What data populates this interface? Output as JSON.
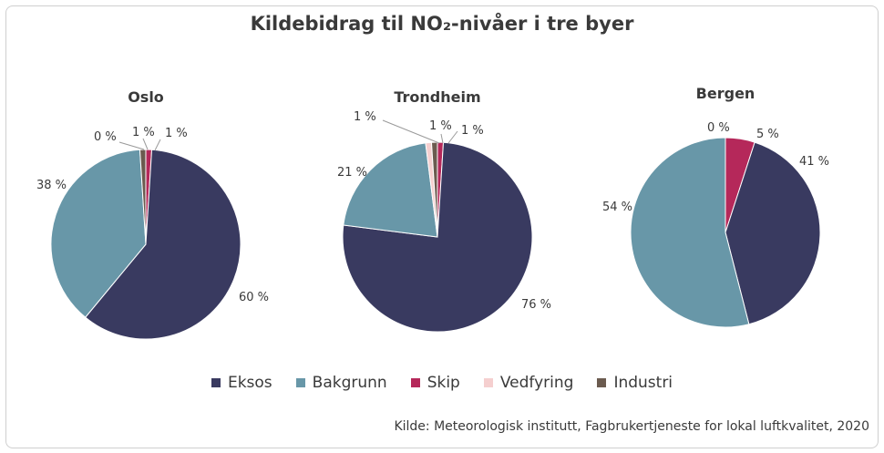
{
  "chart_data": {
    "type": "pie",
    "title": "Kildebidrag til NO₂-nivåer i tre byer",
    "source": "Kilde: Meteorologisk institutt, Fagbrukertjeneste for lokal luftkvalitet, 2020",
    "categories": [
      "Eksos",
      "Bakgrunn",
      "Skip",
      "Vedfyring",
      "Industri"
    ],
    "colors": {
      "Eksos": "#393a60",
      "Bakgrunn": "#6897a8",
      "Skip": "#b5285a",
      "Vedfyring": "#f5cfcf",
      "Industri": "#6b5b4f"
    },
    "charts": [
      {
        "city": "Oslo",
        "values": {
          "Eksos": 60,
          "Bakgrunn": 38,
          "Skip": 1,
          "Vedfyring": 0,
          "Industri": 1
        },
        "labels": {
          "Eksos": "60 %",
          "Bakgrunn": "38 %",
          "Skip": "1 %",
          "Vedfyring": "0 %",
          "Industri": "1 %"
        }
      },
      {
        "city": "Trondheim",
        "values": {
          "Eksos": 76,
          "Bakgrunn": 21,
          "Skip": 1,
          "Vedfyring": 1,
          "Industri": 1
        },
        "labels": {
          "Eksos": "76 %",
          "Bakgrunn": "21 %",
          "Skip": "1 %",
          "Vedfyring": "1 %",
          "Industri": "1 %"
        }
      },
      {
        "city": "Bergen",
        "values": {
          "Eksos": 41,
          "Bakgrunn": 54,
          "Skip": 5,
          "Vedfyring": 0,
          "Industri": 0
        },
        "labels": {
          "Eksos": "41 %",
          "Bakgrunn": "54 %",
          "Skip": "5 %",
          "Industri": "0 %"
        }
      }
    ]
  }
}
